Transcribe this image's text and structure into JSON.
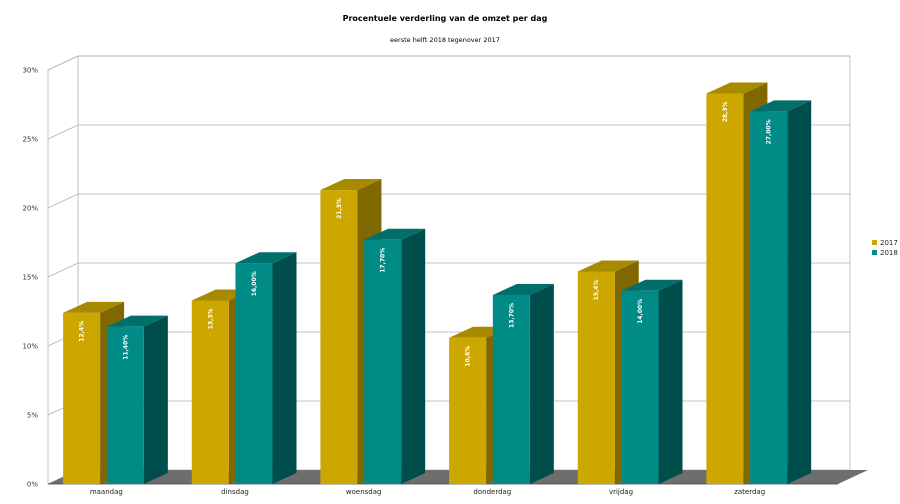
{
  "chart_data": {
    "type": "bar",
    "title": "Procentuele verderling van de omzet per dag",
    "subtitle": "eerste helft 2018 tegenover 2017",
    "categories": [
      "maandag",
      "dinsdag",
      "woensdag",
      "donderdag",
      "vrijdag",
      "zaterdag"
    ],
    "series": [
      {
        "name": "2017",
        "values": [
          12.4,
          13.3,
          21.3,
          10.6,
          15.4,
          28.3
        ],
        "labels": [
          "12,4%",
          "13,3%",
          "21,3%",
          "10,6%",
          "15,4%",
          "28,3%"
        ],
        "color": "#CCA700",
        "side_color": "#806800",
        "top_color": "#A88A00"
      },
      {
        "name": "2018",
        "values": [
          11.4,
          16.0,
          17.7,
          13.7,
          14.0,
          27.0
        ],
        "labels": [
          "11,40%",
          "16,00%",
          "17,70%",
          "13,70%",
          "14,00%",
          "27,00%"
        ],
        "color": "#008B87",
        "side_color": "#004E4C",
        "top_color": "#006E6B"
      }
    ],
    "ylim": [
      0,
      30
    ],
    "yticks": [
      "0%",
      "5%",
      "10%",
      "15%",
      "20%",
      "25%",
      "30%"
    ],
    "grid": true,
    "legend_position": "right",
    "style": "3d"
  }
}
